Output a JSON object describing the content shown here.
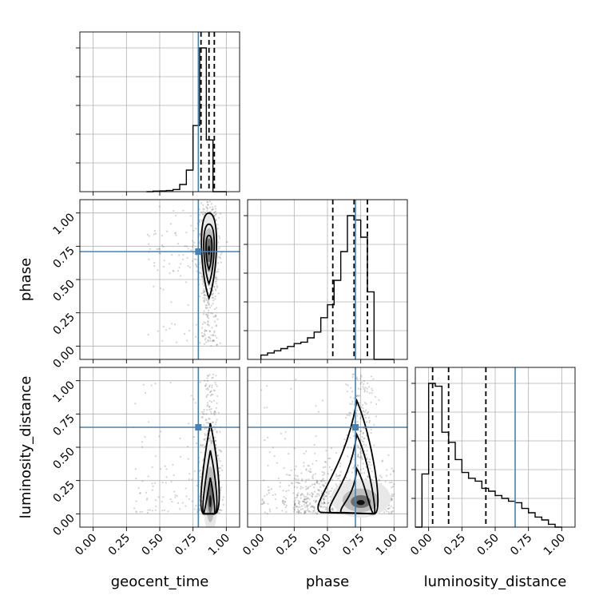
{
  "chart_data": {
    "type": "corner",
    "parameters": [
      "geocent_time",
      "phase",
      "luminosity_distance"
    ],
    "ticks": [
      "0.00",
      "0.25",
      "0.50",
      "0.75",
      "1.00"
    ],
    "xlim": [
      -0.1,
      1.1
    ],
    "ylim": [
      -0.1,
      1.1
    ],
    "grid": true,
    "truths": {
      "geocent_time": 0.79,
      "phase": 0.71,
      "luminosity_distance": 0.65
    },
    "colors": {
      "truth": "#4682b4",
      "hist": "#000000"
    },
    "histograms": {
      "geocent_time": {
        "bins": [
          0.4,
          0.45,
          0.5,
          0.55,
          0.6,
          0.65,
          0.7,
          0.75,
          0.8,
          0.85,
          0.9,
          0.95,
          1.0
        ],
        "counts": [
          0.0,
          0.004,
          0.005,
          0.008,
          0.015,
          0.05,
          0.15,
          0.46,
          1.0,
          0.36,
          0.0,
          0.0
        ],
        "quantiles": [
          0.81,
          0.87,
          0.91
        ]
      },
      "phase": {
        "bins": [
          0.0,
          0.05,
          0.1,
          0.15,
          0.2,
          0.25,
          0.3,
          0.35,
          0.4,
          0.45,
          0.5,
          0.55,
          0.6,
          0.65,
          0.7,
          0.75,
          0.8,
          0.85,
          0.9,
          0.95,
          1.0
        ],
        "counts": [
          0.03,
          0.045,
          0.06,
          0.075,
          0.09,
          0.11,
          0.12,
          0.15,
          0.19,
          0.29,
          0.38,
          0.55,
          0.75,
          1.0,
          0.97,
          0.85,
          0.47,
          0.0,
          0.0,
          0.0
        ],
        "quantiles": [
          0.54,
          0.7,
          0.8
        ]
      },
      "luminosity_distance": {
        "bins": [
          -0.1,
          -0.05,
          0.0,
          0.05,
          0.1,
          0.15,
          0.2,
          0.25,
          0.3,
          0.35,
          0.4,
          0.45,
          0.5,
          0.55,
          0.6,
          0.65,
          0.7,
          0.75,
          0.8,
          0.85,
          0.9,
          0.95,
          1.0
        ],
        "counts": [
          0.0,
          0.37,
          1.0,
          0.98,
          0.66,
          0.59,
          0.47,
          0.38,
          0.34,
          0.32,
          0.27,
          0.25,
          0.22,
          0.2,
          0.18,
          0.17,
          0.13,
          0.1,
          0.07,
          0.05,
          0.02,
          0.0
        ],
        "quantiles": [
          0.03,
          0.15,
          0.43
        ]
      }
    },
    "pairs": [
      {
        "x": "geocent_time",
        "y": "phase",
        "density_center": [
          0.87,
          0.72
        ]
      },
      {
        "x": "geocent_time",
        "y": "luminosity_distance",
        "density_center": [
          0.88,
          0.08
        ]
      },
      {
        "x": "phase",
        "y": "luminosity_distance",
        "density_center": [
          0.75,
          0.08
        ]
      }
    ]
  }
}
